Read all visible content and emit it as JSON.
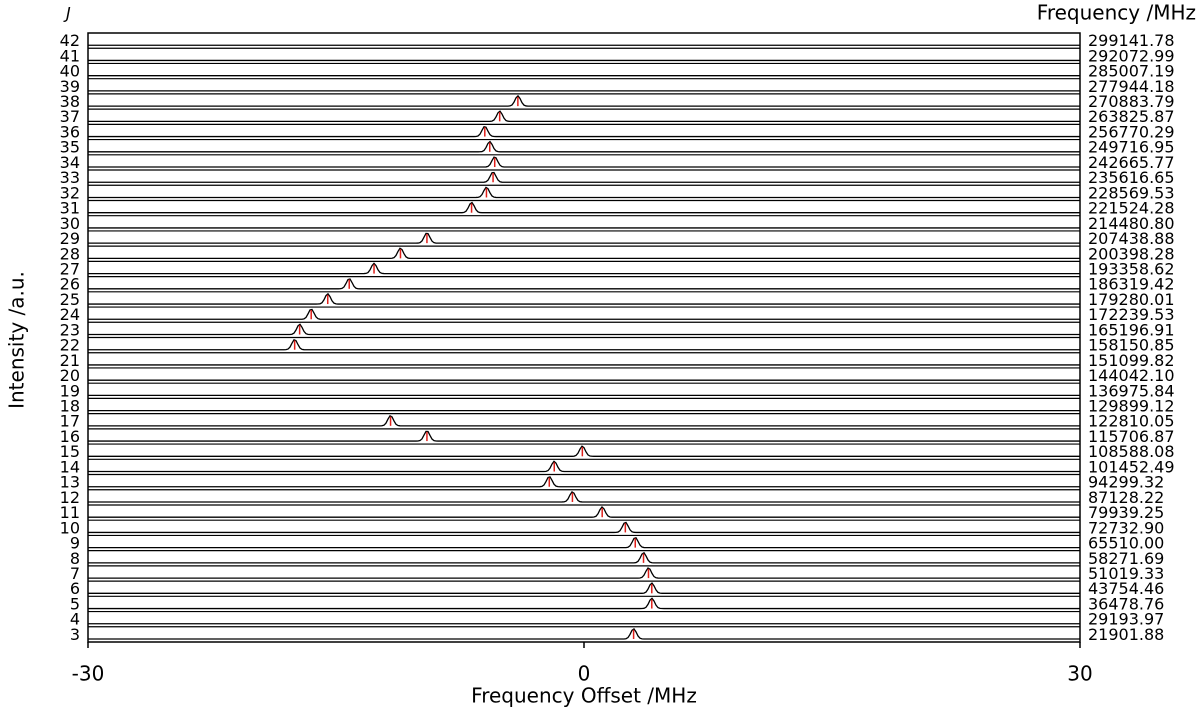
{
  "chart_data": {
    "type": "stacked-spectra",
    "left_title": "J",
    "right_title": "Frequency /MHz",
    "xlabel": "Frequency Offset /MHz",
    "ylabel": "Intensity /a.u.",
    "xlim": [
      -30,
      30
    ],
    "xticks": [
      -30,
      0,
      30
    ],
    "trace_color": "#000000",
    "marker_color": "#e0201b",
    "rows": [
      {
        "J": 42,
        "frequency": "299141.78",
        "offset": null
      },
      {
        "J": 41,
        "frequency": "292072.99",
        "offset": null
      },
      {
        "J": 40,
        "frequency": "285007.19",
        "offset": null
      },
      {
        "J": 39,
        "frequency": "277944.18",
        "offset": null
      },
      {
        "J": 38,
        "frequency": "270883.79",
        "offset": -4.0
      },
      {
        "J": 37,
        "frequency": "263825.87",
        "offset": -5.1
      },
      {
        "J": 36,
        "frequency": "256770.29",
        "offset": -6.0
      },
      {
        "J": 35,
        "frequency": "249716.95",
        "offset": -5.7
      },
      {
        "J": 34,
        "frequency": "242665.77",
        "offset": -5.4
      },
      {
        "J": 33,
        "frequency": "235616.65",
        "offset": -5.5
      },
      {
        "J": 32,
        "frequency": "228569.53",
        "offset": -5.9
      },
      {
        "J": 31,
        "frequency": "221524.28",
        "offset": -6.8
      },
      {
        "J": 30,
        "frequency": "214480.80",
        "offset": null
      },
      {
        "J": 29,
        "frequency": "207438.88",
        "offset": -9.5
      },
      {
        "J": 28,
        "frequency": "200398.28",
        "offset": -11.1
      },
      {
        "J": 27,
        "frequency": "193358.62",
        "offset": -12.7
      },
      {
        "J": 26,
        "frequency": "186319.42",
        "offset": -14.2
      },
      {
        "J": 25,
        "frequency": "179280.01",
        "offset": -15.5
      },
      {
        "J": 24,
        "frequency": "172239.53",
        "offset": -16.5
      },
      {
        "J": 23,
        "frequency": "165196.91",
        "offset": -17.2
      },
      {
        "J": 22,
        "frequency": "158150.85",
        "offset": -17.5
      },
      {
        "J": 21,
        "frequency": "151099.82",
        "offset": null
      },
      {
        "J": 20,
        "frequency": "144042.10",
        "offset": null
      },
      {
        "J": 19,
        "frequency": "136975.84",
        "offset": null
      },
      {
        "J": 18,
        "frequency": "129899.12",
        "offset": null
      },
      {
        "J": 17,
        "frequency": "122810.05",
        "offset": -11.7
      },
      {
        "J": 16,
        "frequency": "115706.87",
        "offset": -9.5
      },
      {
        "J": 15,
        "frequency": "108588.08",
        "offset": -0.1
      },
      {
        "J": 14,
        "frequency": "101452.49",
        "offset": -1.8
      },
      {
        "J": 13,
        "frequency": "94299.32",
        "offset": -2.1
      },
      {
        "J": 12,
        "frequency": "87128.22",
        "offset": -0.7
      },
      {
        "J": 11,
        "frequency": "79939.25",
        "offset": 1.1
      },
      {
        "J": 10,
        "frequency": "72732.90",
        "offset": 2.5
      },
      {
        "J": 9,
        "frequency": "65510.00",
        "offset": 3.1
      },
      {
        "J": 8,
        "frequency": "58271.69",
        "offset": 3.6
      },
      {
        "J": 7,
        "frequency": "51019.33",
        "offset": 3.9
      },
      {
        "J": 6,
        "frequency": "43754.46",
        "offset": 4.1
      },
      {
        "J": 5,
        "frequency": "36478.76",
        "offset": 4.1
      },
      {
        "J": 4,
        "frequency": "29193.97",
        "offset": null
      },
      {
        "J": 3,
        "frequency": "21901.88",
        "offset": 3.0
      }
    ]
  }
}
